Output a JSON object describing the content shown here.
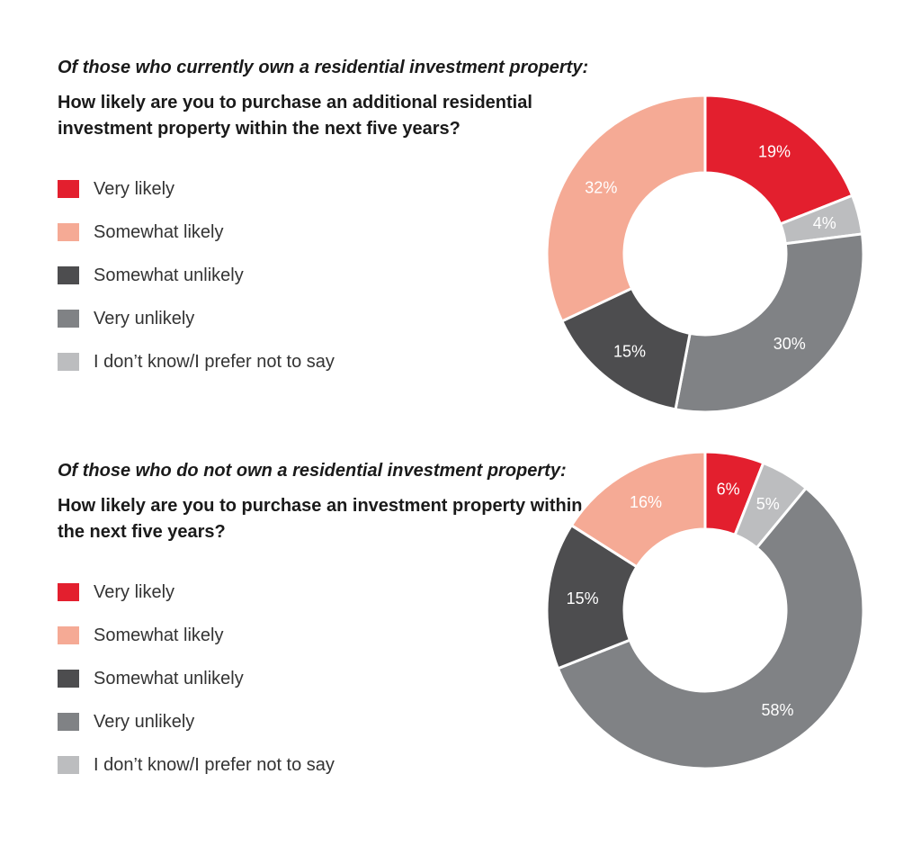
{
  "legend_items": [
    {
      "label": "Very likely",
      "color": "#e31f2e"
    },
    {
      "label": "Somewhat likely",
      "color": "#f5aa95"
    },
    {
      "label": "Somewhat unlikely",
      "color": "#4d4d4f"
    },
    {
      "label": "Very unlikely",
      "color": "#808285"
    },
    {
      "label": "I don’t know/I prefer not to say",
      "color": "#bcbdbf"
    }
  ],
  "chart_data": [
    {
      "type": "pie",
      "subtitle": "Of those who currently own a residential investment property:",
      "title": "How likely are you to purchase an additional residential investment property within the next five years?",
      "categories": [
        "Very likely",
        "I don’t know/I prefer not to say",
        "Very unlikely",
        "Somewhat unlikely",
        "Somewhat likely"
      ],
      "values": [
        19,
        4,
        30,
        15,
        32
      ],
      "labels": [
        "19%",
        "4%",
        "30%",
        "15%",
        "32%"
      ],
      "colors": [
        "#e31f2e",
        "#bcbdbf",
        "#808285",
        "#4d4d4f",
        "#f5aa95"
      ],
      "legend": "left"
    },
    {
      "type": "pie",
      "subtitle": "Of those who do not own a residential investment property:",
      "title": "How likely are you to purchase an investment property within the next five years?",
      "categories": [
        "Very likely",
        "I don’t know/I prefer not to say",
        "Very unlikely",
        "Somewhat unlikely",
        "Somewhat likely"
      ],
      "values": [
        6,
        5,
        58,
        15,
        16
      ],
      "labels": [
        "6%",
        "5%",
        "58%",
        "15%",
        "16%"
      ],
      "colors": [
        "#e31f2e",
        "#bcbdbf",
        "#808285",
        "#4d4d4f",
        "#f5aa95"
      ],
      "legend": "left"
    }
  ]
}
